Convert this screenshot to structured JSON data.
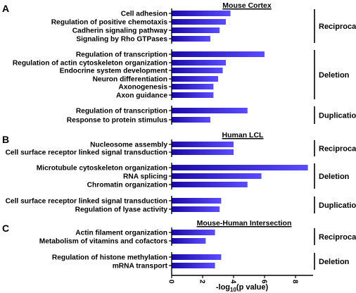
{
  "chart_data": {
    "type": "bar",
    "orientation": "horizontal",
    "bar_color_start": "#1a0aa8",
    "bar_color_end": "#5a4cff",
    "xlabel_main": "-log",
    "xlabel_sub": "10",
    "xlabel_tail": "(p value)",
    "xlim": [
      0,
      9
    ],
    "xticks": [
      "0",
      "2",
      "4",
      "6",
      "8"
    ],
    "panels": [
      {
        "letter": "A",
        "title": "Mouse Cortex",
        "groups": [
          {
            "name": "Reciprocal",
            "bars": [
              {
                "label": "Cell adhesion",
                "value": 3.8
              },
              {
                "label": "Regulation of positive chemotaxis",
                "value": 3.5
              },
              {
                "label": "Cadherin signaling pathway",
                "value": 3.1
              },
              {
                "label": "Signaling by Rho GTPases",
                "value": 2.5
              }
            ]
          },
          {
            "name": "Deletion",
            "bars": [
              {
                "label": "Regulation of transcription",
                "value": 6.0
              },
              {
                "label": "Regulation of actin cytoskeleton organization",
                "value": 3.5
              },
              {
                "label": "Endocrine system development",
                "value": 3.3
              },
              {
                "label": "Neuron differentiation",
                "value": 3.0
              },
              {
                "label": "Axonogenesis",
                "value": 2.7
              },
              {
                "label": "Axon guidance",
                "value": 2.7
              }
            ]
          },
          {
            "name": "Duplication",
            "bars": [
              {
                "label": "Regulation of transcription",
                "value": 4.9
              },
              {
                "label": "Response to protein stimulus",
                "value": 2.5
              }
            ]
          }
        ]
      },
      {
        "letter": "B",
        "title": "Human LCL",
        "groups": [
          {
            "name": "Reciprocal",
            "bars": [
              {
                "label": "Nucleosome assembly",
                "value": 4.0
              },
              {
                "label": "Cell surface receptor linked signal transduction",
                "value": 4.0
              }
            ]
          },
          {
            "name": "Deletion",
            "bars": [
              {
                "label": "Microtubule cytoskeleton organization",
                "value": 8.8
              },
              {
                "label": "RNA splicing",
                "value": 5.8
              },
              {
                "label": "Chromatin organization",
                "value": 4.9
              }
            ]
          },
          {
            "name": "Duplication",
            "bars": [
              {
                "label": "Cell surface receptor linked signal transduction",
                "value": 3.2
              },
              {
                "label": "Regulation of lyase activity",
                "value": 3.1
              }
            ]
          }
        ]
      },
      {
        "letter": "C",
        "title": "Mouse-Human Intersection",
        "groups": [
          {
            "name": "Reciprocal",
            "bars": [
              {
                "label": "Actin filament organization",
                "value": 2.8
              },
              {
                "label": "Metabolism of vitamins and cofactors",
                "value": 2.2
              }
            ]
          },
          {
            "name": "Deletion",
            "bars": [
              {
                "label": "Regulation of histone methylation",
                "value": 3.2
              },
              {
                "label": "mRNA transport",
                "value": 2.8
              }
            ]
          }
        ]
      }
    ]
  }
}
